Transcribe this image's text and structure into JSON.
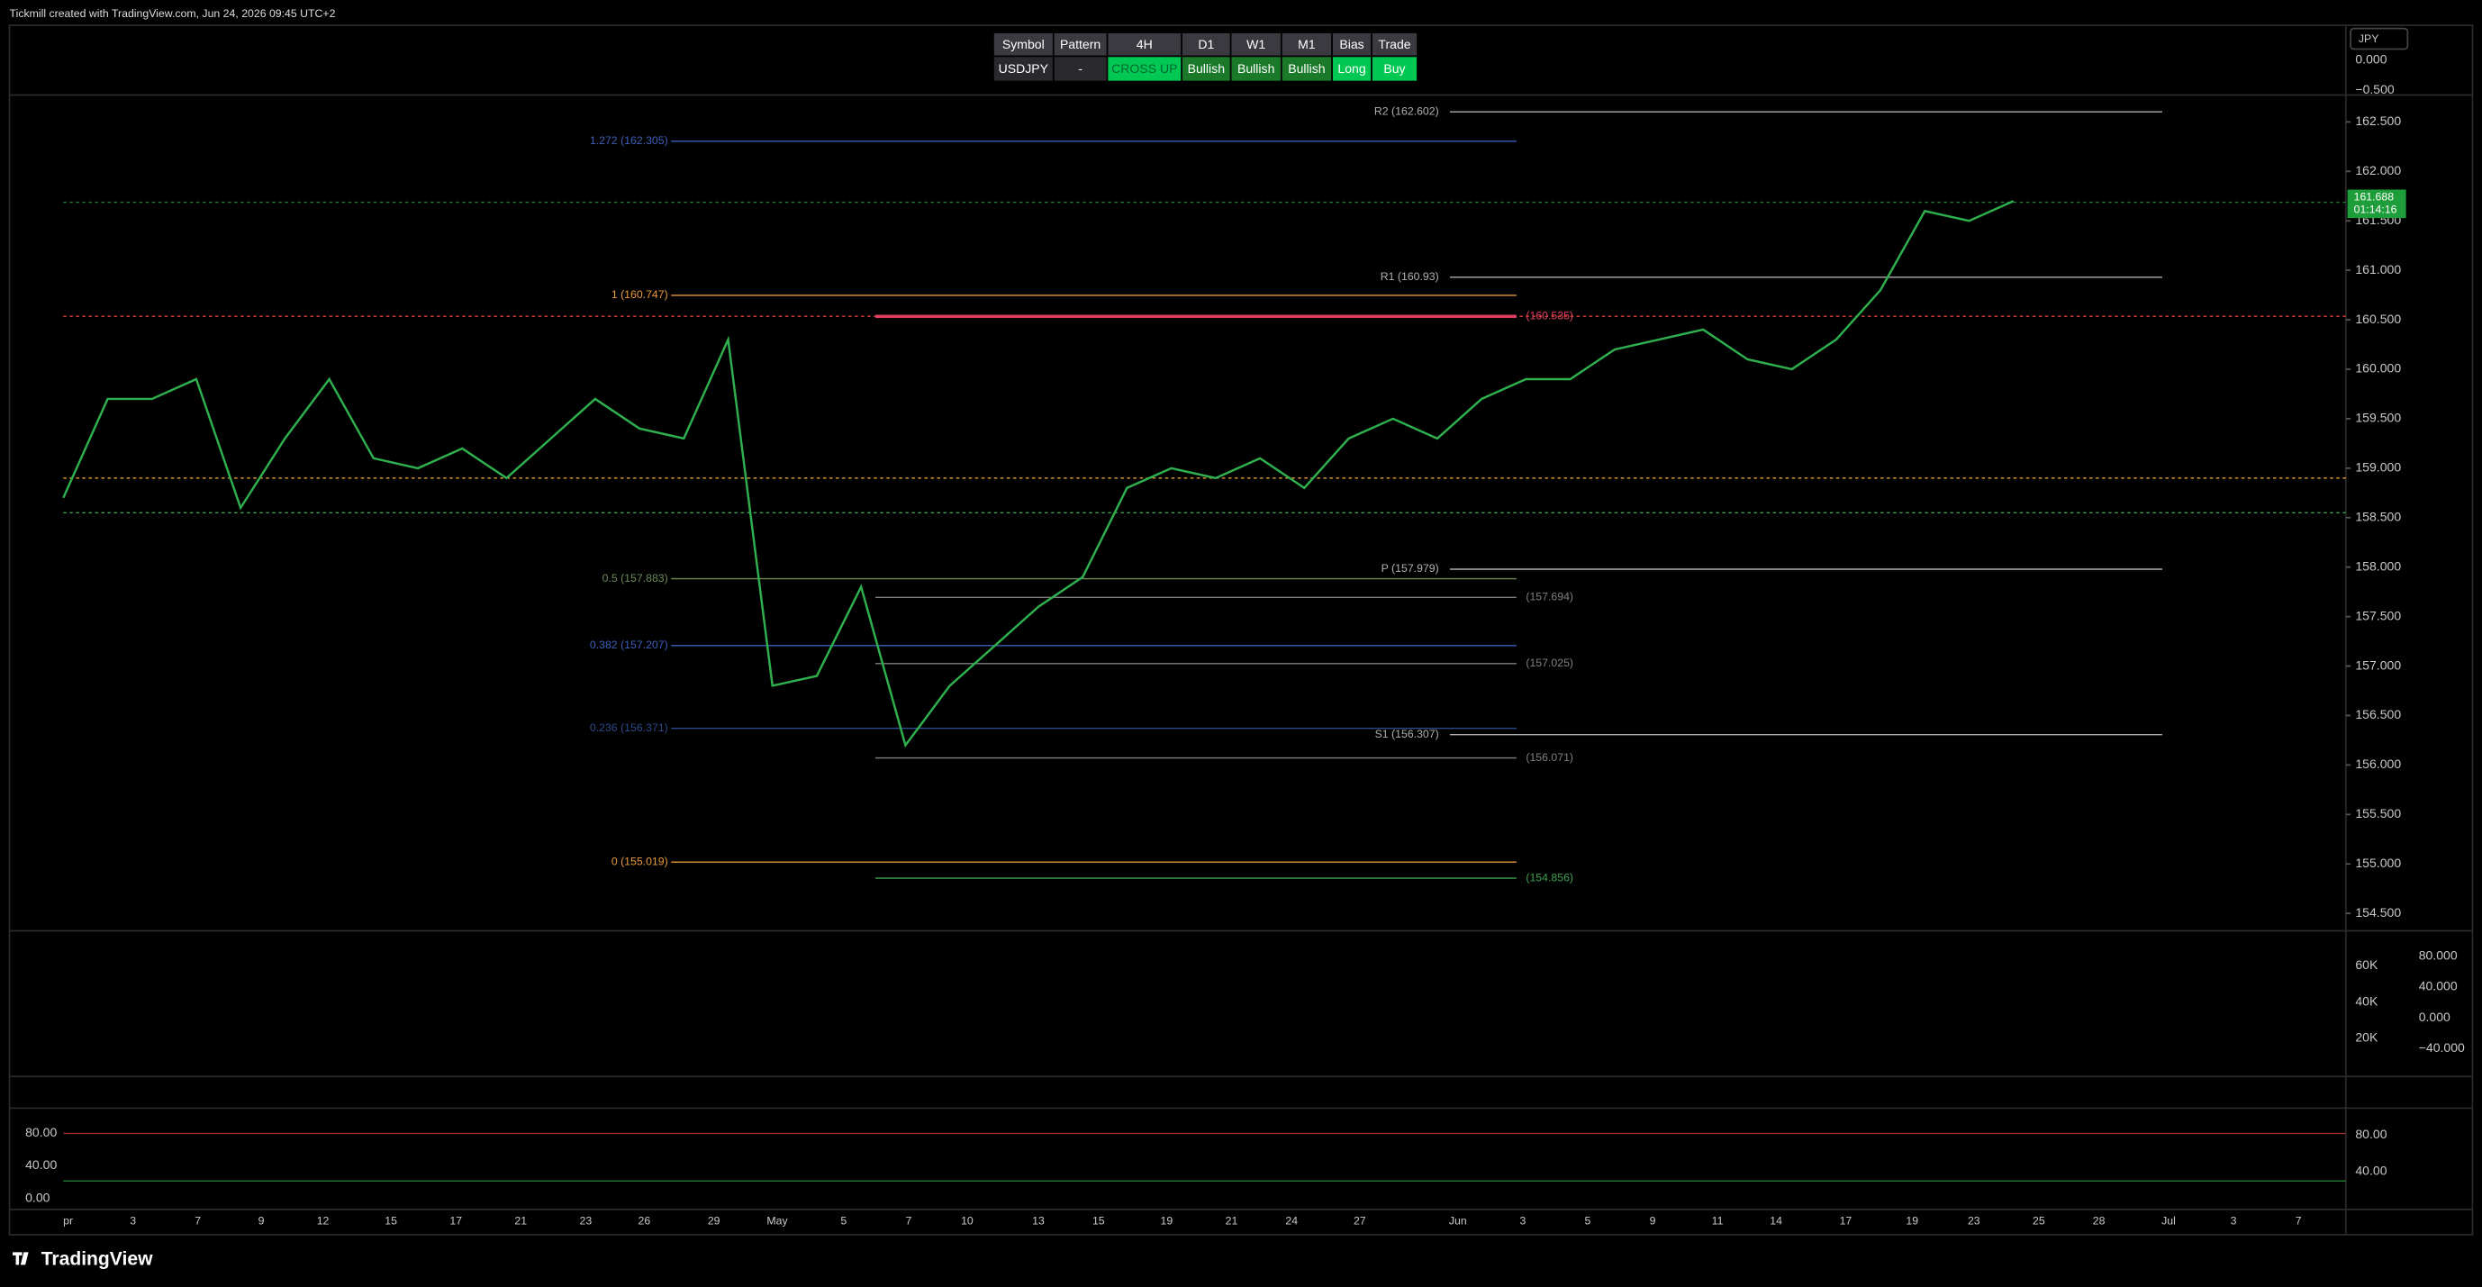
{
  "header": {
    "caption": "Tickmill created with TradingView.com, Jun 24, 2026 09:45 UTC+2"
  },
  "table": {
    "headers": [
      "Symbol",
      "Pattern",
      "4H",
      "D1",
      "W1",
      "M1",
      "Bias",
      "Trade"
    ],
    "row": [
      "USDJPY",
      "-",
      "CROSS UP",
      "Bullish",
      "Bullish",
      "Bullish",
      "Long",
      "Buy"
    ]
  },
  "currency": "JPY",
  "top_axis_labels": [
    "0.000",
    "−0.500"
  ],
  "price_axis": {
    "ylim": [
      154.324,
      162.772
    ],
    "ticks": [
      {
        "value": 162.5,
        "label": "162.500"
      },
      {
        "value": 162,
        "label": "162.000"
      },
      {
        "value": 161.5,
        "label": "161.500"
      },
      {
        "value": 161,
        "label": "161.000"
      },
      {
        "value": 160.5,
        "label": "160.500"
      },
      {
        "value": 160,
        "label": "160.000"
      },
      {
        "value": 159.5,
        "label": "159.500"
      },
      {
        "value": 159,
        "label": "159.000"
      },
      {
        "value": 158.5,
        "label": "158.500"
      },
      {
        "value": 158,
        "label": "158.000"
      },
      {
        "value": 157.5,
        "label": "157.500"
      },
      {
        "value": 157,
        "label": "157.000"
      },
      {
        "value": 156.5,
        "label": "156.500"
      },
      {
        "value": 156,
        "label": "156.000"
      },
      {
        "value": 155.5,
        "label": "155.500"
      },
      {
        "value": 155,
        "label": "155.000"
      },
      {
        "value": 154.5,
        "label": "154.500"
      }
    ]
  },
  "current_price": {
    "value": 161.688,
    "label": "161.688",
    "timer": "01:14:16",
    "color": "#1e9e3a"
  },
  "price_series": {
    "color": "#2fb04f",
    "values": [
      158.7,
      159.7,
      159.7,
      159.9,
      158.6,
      159.3,
      159.9,
      159.1,
      159.0,
      159.2,
      158.9,
      159.3,
      159.7,
      159.4,
      159.3,
      160.3,
      156.8,
      156.9,
      157.8,
      156.2,
      156.8,
      157.2,
      157.6,
      157.9,
      158.8,
      159.0,
      158.9,
      159.1,
      158.8,
      159.3,
      159.5,
      159.3,
      159.7,
      159.9,
      159.9,
      160.2,
      160.3,
      160.4,
      160.1,
      160.0,
      160.3,
      160.8,
      161.6,
      161.5,
      161.7
    ]
  },
  "levels": [
    {
      "label": "R2 (162.602)",
      "value": 162.602,
      "color": "#b0b0b0"
    },
    {
      "label": "1.272 (162.305)",
      "value": 162.305,
      "color": "#3d5fb8"
    },
    {
      "label": "1 (160.747)",
      "value": 160.747,
      "color": "#e89a3c"
    },
    {
      "label": "(160.535)",
      "value": 160.535,
      "color": "#e04060"
    },
    {
      "label": "R1 (160.93)",
      "value": 160.93,
      "color": "#b0b0b0"
    },
    {
      "label": "0.5 (157.883)",
      "value": 157.883,
      "color": "#6a8a5a"
    },
    {
      "label": "P (157.979)",
      "value": 157.979,
      "color": "#b0b0b0"
    },
    {
      "label": "(157.694)",
      "value": 157.694,
      "color": "#808080"
    },
    {
      "label": "0.382 (157.207)",
      "value": 157.207,
      "color": "#3d5fb8"
    },
    {
      "label": "(157.025)",
      "value": 157.025,
      "color": "#808080"
    },
    {
      "label": "0.236 (156.371)",
      "value": 156.371,
      "color": "#2d4a8a"
    },
    {
      "label": "S1 (156.307)",
      "value": 156.307,
      "color": "#b0b0b0"
    },
    {
      "label": "(156.071)",
      "value": 156.071,
      "color": "#808080"
    },
    {
      "label": "0 (155.019)",
      "value": 155.019,
      "color": "#e89a3c"
    },
    {
      "label": "(154.856)",
      "value": 154.856,
      "color": "#3fa050"
    }
  ],
  "guides": [
    {
      "value": 160.535,
      "color": "#e04040"
    },
    {
      "value": 158.9,
      "color": "#e8a030"
    },
    {
      "value": 158.55,
      "color": "#3fa050"
    },
    {
      "value": 161.688,
      "color": "#2a7a3a"
    }
  ],
  "volume_axis_labels": [
    "60K",
    "40K",
    "20K"
  ],
  "oscillator_axis_labels": [
    "80.000",
    "40.000",
    "0.000",
    "−40.000"
  ],
  "stoch_right_labels": [
    "80.00",
    "40.00"
  ],
  "stoch_left_labels": [
    "80.00",
    "40.00",
    "0.00"
  ],
  "x_labels": [
    "pr",
    "3",
    "7",
    "9",
    "12",
    "15",
    "17",
    "21",
    "23",
    "26",
    "29",
    "May",
    "5",
    "7",
    "10",
    "13",
    "15",
    "19",
    "21",
    "24",
    "27",
    "Jun",
    "3",
    "5",
    "9",
    "11",
    "14",
    "17",
    "19",
    "23",
    "25",
    "28",
    "Jul",
    "3",
    "7"
  ],
  "footer": {
    "brand": "TradingView"
  }
}
